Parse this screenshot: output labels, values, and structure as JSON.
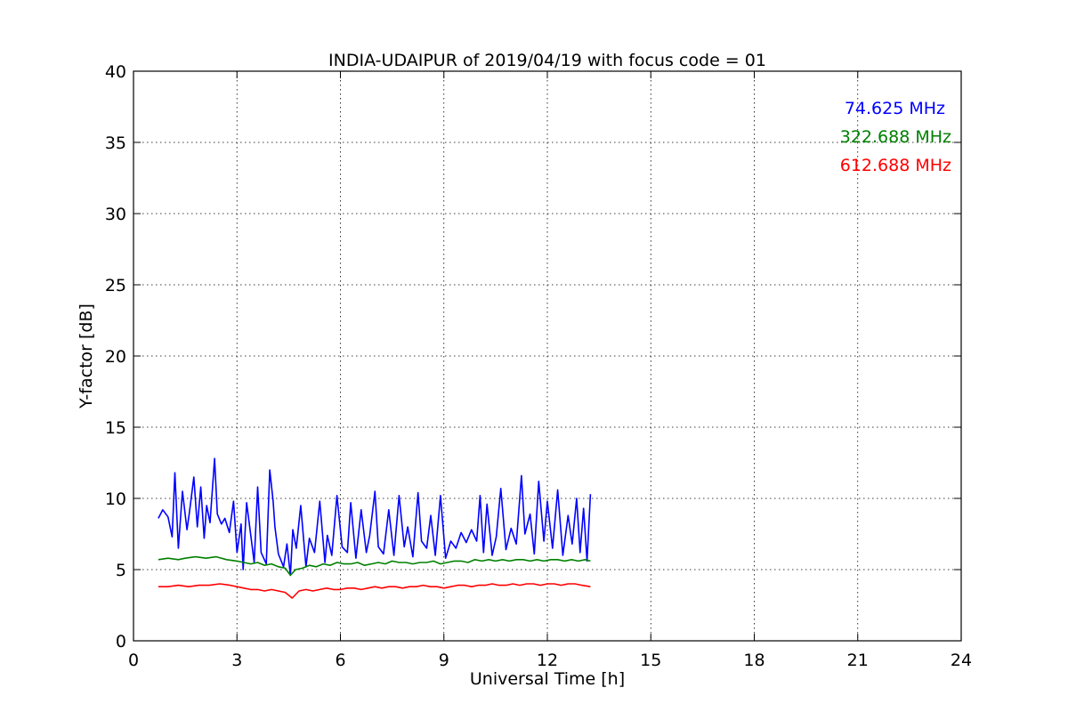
{
  "chart_data": {
    "type": "line",
    "title": "INDIA-UDAIPUR of 2019/04/19 with focus code = 01",
    "xlabel": "Universal Time [h]",
    "ylabel": "Y-factor [dB]",
    "xlim": [
      0,
      24
    ],
    "ylim": [
      0,
      40
    ],
    "xticks": [
      0,
      3,
      6,
      9,
      12,
      15,
      18,
      21,
      24
    ],
    "yticks": [
      0,
      5,
      10,
      15,
      20,
      25,
      30,
      35,
      40
    ],
    "grid": true,
    "legend_position": "top-right",
    "series": [
      {
        "name": "74.625 MHz",
        "color": "#0000ff",
        "x": [
          0.72,
          0.85,
          1.0,
          1.12,
          1.2,
          1.3,
          1.42,
          1.55,
          1.62,
          1.75,
          1.85,
          1.95,
          2.05,
          2.12,
          2.22,
          2.35,
          2.43,
          2.55,
          2.65,
          2.78,
          2.9,
          3.0,
          3.12,
          3.18,
          3.28,
          3.4,
          3.5,
          3.6,
          3.7,
          3.85,
          3.95,
          4.05,
          4.1,
          4.2,
          4.35,
          4.45,
          4.55,
          4.62,
          4.72,
          4.85,
          5.0,
          5.1,
          5.25,
          5.4,
          5.55,
          5.62,
          5.75,
          5.9,
          6.05,
          6.2,
          6.3,
          6.45,
          6.6,
          6.75,
          6.85,
          7.0,
          7.1,
          7.25,
          7.4,
          7.55,
          7.7,
          7.85,
          7.95,
          8.1,
          8.25,
          8.35,
          8.5,
          8.62,
          8.75,
          8.9,
          9.05,
          9.2,
          9.35,
          9.5,
          9.65,
          9.8,
          9.95,
          10.05,
          10.15,
          10.25,
          10.4,
          10.52,
          10.65,
          10.8,
          10.95,
          11.1,
          11.25,
          11.35,
          11.5,
          11.62,
          11.75,
          11.9,
          12.0,
          12.15,
          12.3,
          12.45,
          12.6,
          12.72,
          12.85,
          12.95,
          13.05,
          13.15,
          13.25
        ],
        "y": [
          8.6,
          9.2,
          8.7,
          7.3,
          11.8,
          6.5,
          10.5,
          7.8,
          9.0,
          11.5,
          8.0,
          10.8,
          7.2,
          9.5,
          8.3,
          12.8,
          8.9,
          8.2,
          8.6,
          7.6,
          9.8,
          6.2,
          8.2,
          5.0,
          9.7,
          7.4,
          5.5,
          10.8,
          6.2,
          5.4,
          12.0,
          9.8,
          8.0,
          6.1,
          5.2,
          6.8,
          4.6,
          7.8,
          6.5,
          9.5,
          5.2,
          7.2,
          6.2,
          9.8,
          5.5,
          7.4,
          6.0,
          10.2,
          6.6,
          6.2,
          9.7,
          5.8,
          9.2,
          6.2,
          7.4,
          10.5,
          6.6,
          6.1,
          9.2,
          6.0,
          10.2,
          6.6,
          8.0,
          5.9,
          10.4,
          7.0,
          6.5,
          8.8,
          6.0,
          10.2,
          5.8,
          7.0,
          6.5,
          7.6,
          6.9,
          7.8,
          7.0,
          10.2,
          6.2,
          9.6,
          6.0,
          7.3,
          10.7,
          6.4,
          7.9,
          6.8,
          11.6,
          7.5,
          8.9,
          6.1,
          11.2,
          7.0,
          9.8,
          6.5,
          10.6,
          6.0,
          8.8,
          6.8,
          10.0,
          6.2,
          9.3,
          5.6,
          10.3
        ]
      },
      {
        "name": "322.688 MHz",
        "color": "#008000",
        "x": [
          0.72,
          1.0,
          1.3,
          1.5,
          1.8,
          2.1,
          2.4,
          2.7,
          3.0,
          3.2,
          3.4,
          3.6,
          3.8,
          4.0,
          4.2,
          4.4,
          4.55,
          4.7,
          4.9,
          5.1,
          5.3,
          5.5,
          5.7,
          5.9,
          6.1,
          6.3,
          6.5,
          6.7,
          6.9,
          7.1,
          7.3,
          7.5,
          7.7,
          7.9,
          8.1,
          8.3,
          8.5,
          8.7,
          8.9,
          9.1,
          9.3,
          9.5,
          9.7,
          9.9,
          10.1,
          10.3,
          10.5,
          10.7,
          10.9,
          11.1,
          11.3,
          11.5,
          11.7,
          11.9,
          12.1,
          12.3,
          12.5,
          12.7,
          12.9,
          13.1,
          13.25
        ],
        "y": [
          5.7,
          5.8,
          5.7,
          5.8,
          5.9,
          5.8,
          5.9,
          5.7,
          5.6,
          5.5,
          5.4,
          5.5,
          5.3,
          5.4,
          5.2,
          5.1,
          4.6,
          5.0,
          5.1,
          5.3,
          5.2,
          5.4,
          5.3,
          5.5,
          5.4,
          5.4,
          5.5,
          5.3,
          5.4,
          5.5,
          5.4,
          5.6,
          5.5,
          5.5,
          5.4,
          5.5,
          5.5,
          5.6,
          5.4,
          5.5,
          5.6,
          5.6,
          5.5,
          5.7,
          5.6,
          5.7,
          5.6,
          5.7,
          5.6,
          5.7,
          5.7,
          5.6,
          5.7,
          5.6,
          5.7,
          5.7,
          5.6,
          5.7,
          5.6,
          5.7,
          5.6
        ]
      },
      {
        "name": "612.688 MHz",
        "color": "#ff0000",
        "x": [
          0.72,
          1.0,
          1.3,
          1.6,
          1.9,
          2.2,
          2.5,
          2.8,
          3.0,
          3.2,
          3.4,
          3.6,
          3.8,
          4.0,
          4.2,
          4.4,
          4.6,
          4.8,
          5.0,
          5.2,
          5.4,
          5.6,
          5.8,
          6.0,
          6.2,
          6.4,
          6.6,
          6.8,
          7.0,
          7.2,
          7.4,
          7.6,
          7.8,
          8.0,
          8.2,
          8.4,
          8.6,
          8.8,
          9.0,
          9.2,
          9.4,
          9.6,
          9.8,
          10.0,
          10.2,
          10.4,
          10.6,
          10.8,
          11.0,
          11.2,
          11.4,
          11.6,
          11.8,
          12.0,
          12.2,
          12.4,
          12.6,
          12.8,
          13.0,
          13.25
        ],
        "y": [
          3.8,
          3.8,
          3.9,
          3.8,
          3.9,
          3.9,
          4.0,
          3.9,
          3.8,
          3.7,
          3.6,
          3.6,
          3.5,
          3.6,
          3.5,
          3.4,
          3.0,
          3.5,
          3.6,
          3.5,
          3.6,
          3.7,
          3.6,
          3.6,
          3.7,
          3.7,
          3.6,
          3.7,
          3.8,
          3.7,
          3.8,
          3.8,
          3.7,
          3.8,
          3.8,
          3.9,
          3.8,
          3.8,
          3.7,
          3.8,
          3.9,
          3.9,
          3.8,
          3.9,
          3.9,
          4.0,
          3.9,
          3.9,
          4.0,
          3.9,
          4.0,
          4.0,
          3.9,
          4.0,
          4.0,
          3.9,
          4.0,
          4.0,
          3.9,
          3.8
        ]
      }
    ]
  }
}
